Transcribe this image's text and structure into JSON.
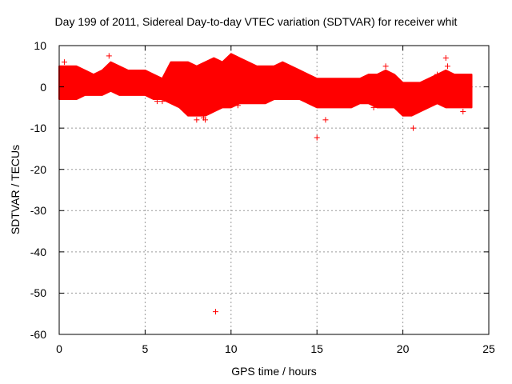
{
  "chart_data": {
    "type": "scatter",
    "title": "Day 199 of 2011, Sidereal Day-to-day VTEC variation (SDTVAR) for receiver whit",
    "xlabel": "GPS time / hours",
    "ylabel": "SDTVAR / TECUs",
    "xlim": [
      0,
      25
    ],
    "ylim": [
      -60,
      10
    ],
    "xticks": [
      "0",
      "5",
      "10",
      "15",
      "20",
      "25"
    ],
    "yticks": [
      "10",
      "0",
      "-10",
      "-20",
      "-30",
      "-40",
      "-50",
      "-60"
    ],
    "grid": true,
    "marker": "+",
    "color": "#ff0000",
    "band": {
      "x": [
        0,
        0.5,
        1,
        1.5,
        2,
        2.5,
        3,
        3.5,
        4,
        4.5,
        5,
        5.5,
        6,
        6.5,
        7,
        7.5,
        8,
        8.5,
        9,
        9.5,
        10,
        10.5,
        11,
        11.5,
        12,
        12.5,
        13,
        13.5,
        14,
        14.5,
        15,
        15.5,
        16,
        16.5,
        17,
        17.5,
        18,
        18.5,
        19,
        19.5,
        20,
        20.5,
        21,
        21.5,
        22,
        22.5,
        23,
        23.5,
        24
      ],
      "upper": [
        5,
        5,
        5,
        4,
        3,
        4,
        6,
        5,
        4,
        4,
        4,
        3,
        2,
        6,
        6,
        6,
        5,
        6,
        7,
        6,
        8,
        7,
        6,
        5,
        5,
        5,
        6,
        5,
        4,
        3,
        2,
        2,
        2,
        2,
        2,
        2,
        3,
        3,
        4,
        3,
        1,
        1,
        1,
        2,
        3,
        4,
        3,
        3,
        3
      ],
      "lower": [
        -3,
        -3,
        -3,
        -2,
        -2,
        -2,
        -1,
        -2,
        -2,
        -2,
        -2,
        -3,
        -3,
        -4,
        -5,
        -7,
        -7,
        -7,
        -6,
        -5,
        -5,
        -4,
        -4,
        -4,
        -4,
        -3,
        -3,
        -3,
        -3,
        -4,
        -5,
        -5,
        -5,
        -5,
        -5,
        -4,
        -4,
        -5,
        -5,
        -5,
        -7,
        -7,
        -6,
        -5,
        -4,
        -5,
        -5,
        -5,
        -5
      ]
    },
    "points": [
      {
        "x": 0.3,
        "y": 6
      },
      {
        "x": 2.9,
        "y": 7.5
      },
      {
        "x": 5.7,
        "y": -3.5
      },
      {
        "x": 6.0,
        "y": -3.5
      },
      {
        "x": 8.0,
        "y": -8
      },
      {
        "x": 8.4,
        "y": -7.5
      },
      {
        "x": 8.5,
        "y": -8
      },
      {
        "x": 9.1,
        "y": -54.5
      },
      {
        "x": 10.4,
        "y": -4.5
      },
      {
        "x": 15.0,
        "y": -12.3
      },
      {
        "x": 15.5,
        "y": -8
      },
      {
        "x": 18.3,
        "y": -5
      },
      {
        "x": 19.0,
        "y": 5
      },
      {
        "x": 20.6,
        "y": -10
      },
      {
        "x": 22.5,
        "y": 7
      },
      {
        "x": 22.6,
        "y": 5
      },
      {
        "x": 22.0,
        "y": 3
      },
      {
        "x": 23.5,
        "y": -6
      }
    ]
  }
}
